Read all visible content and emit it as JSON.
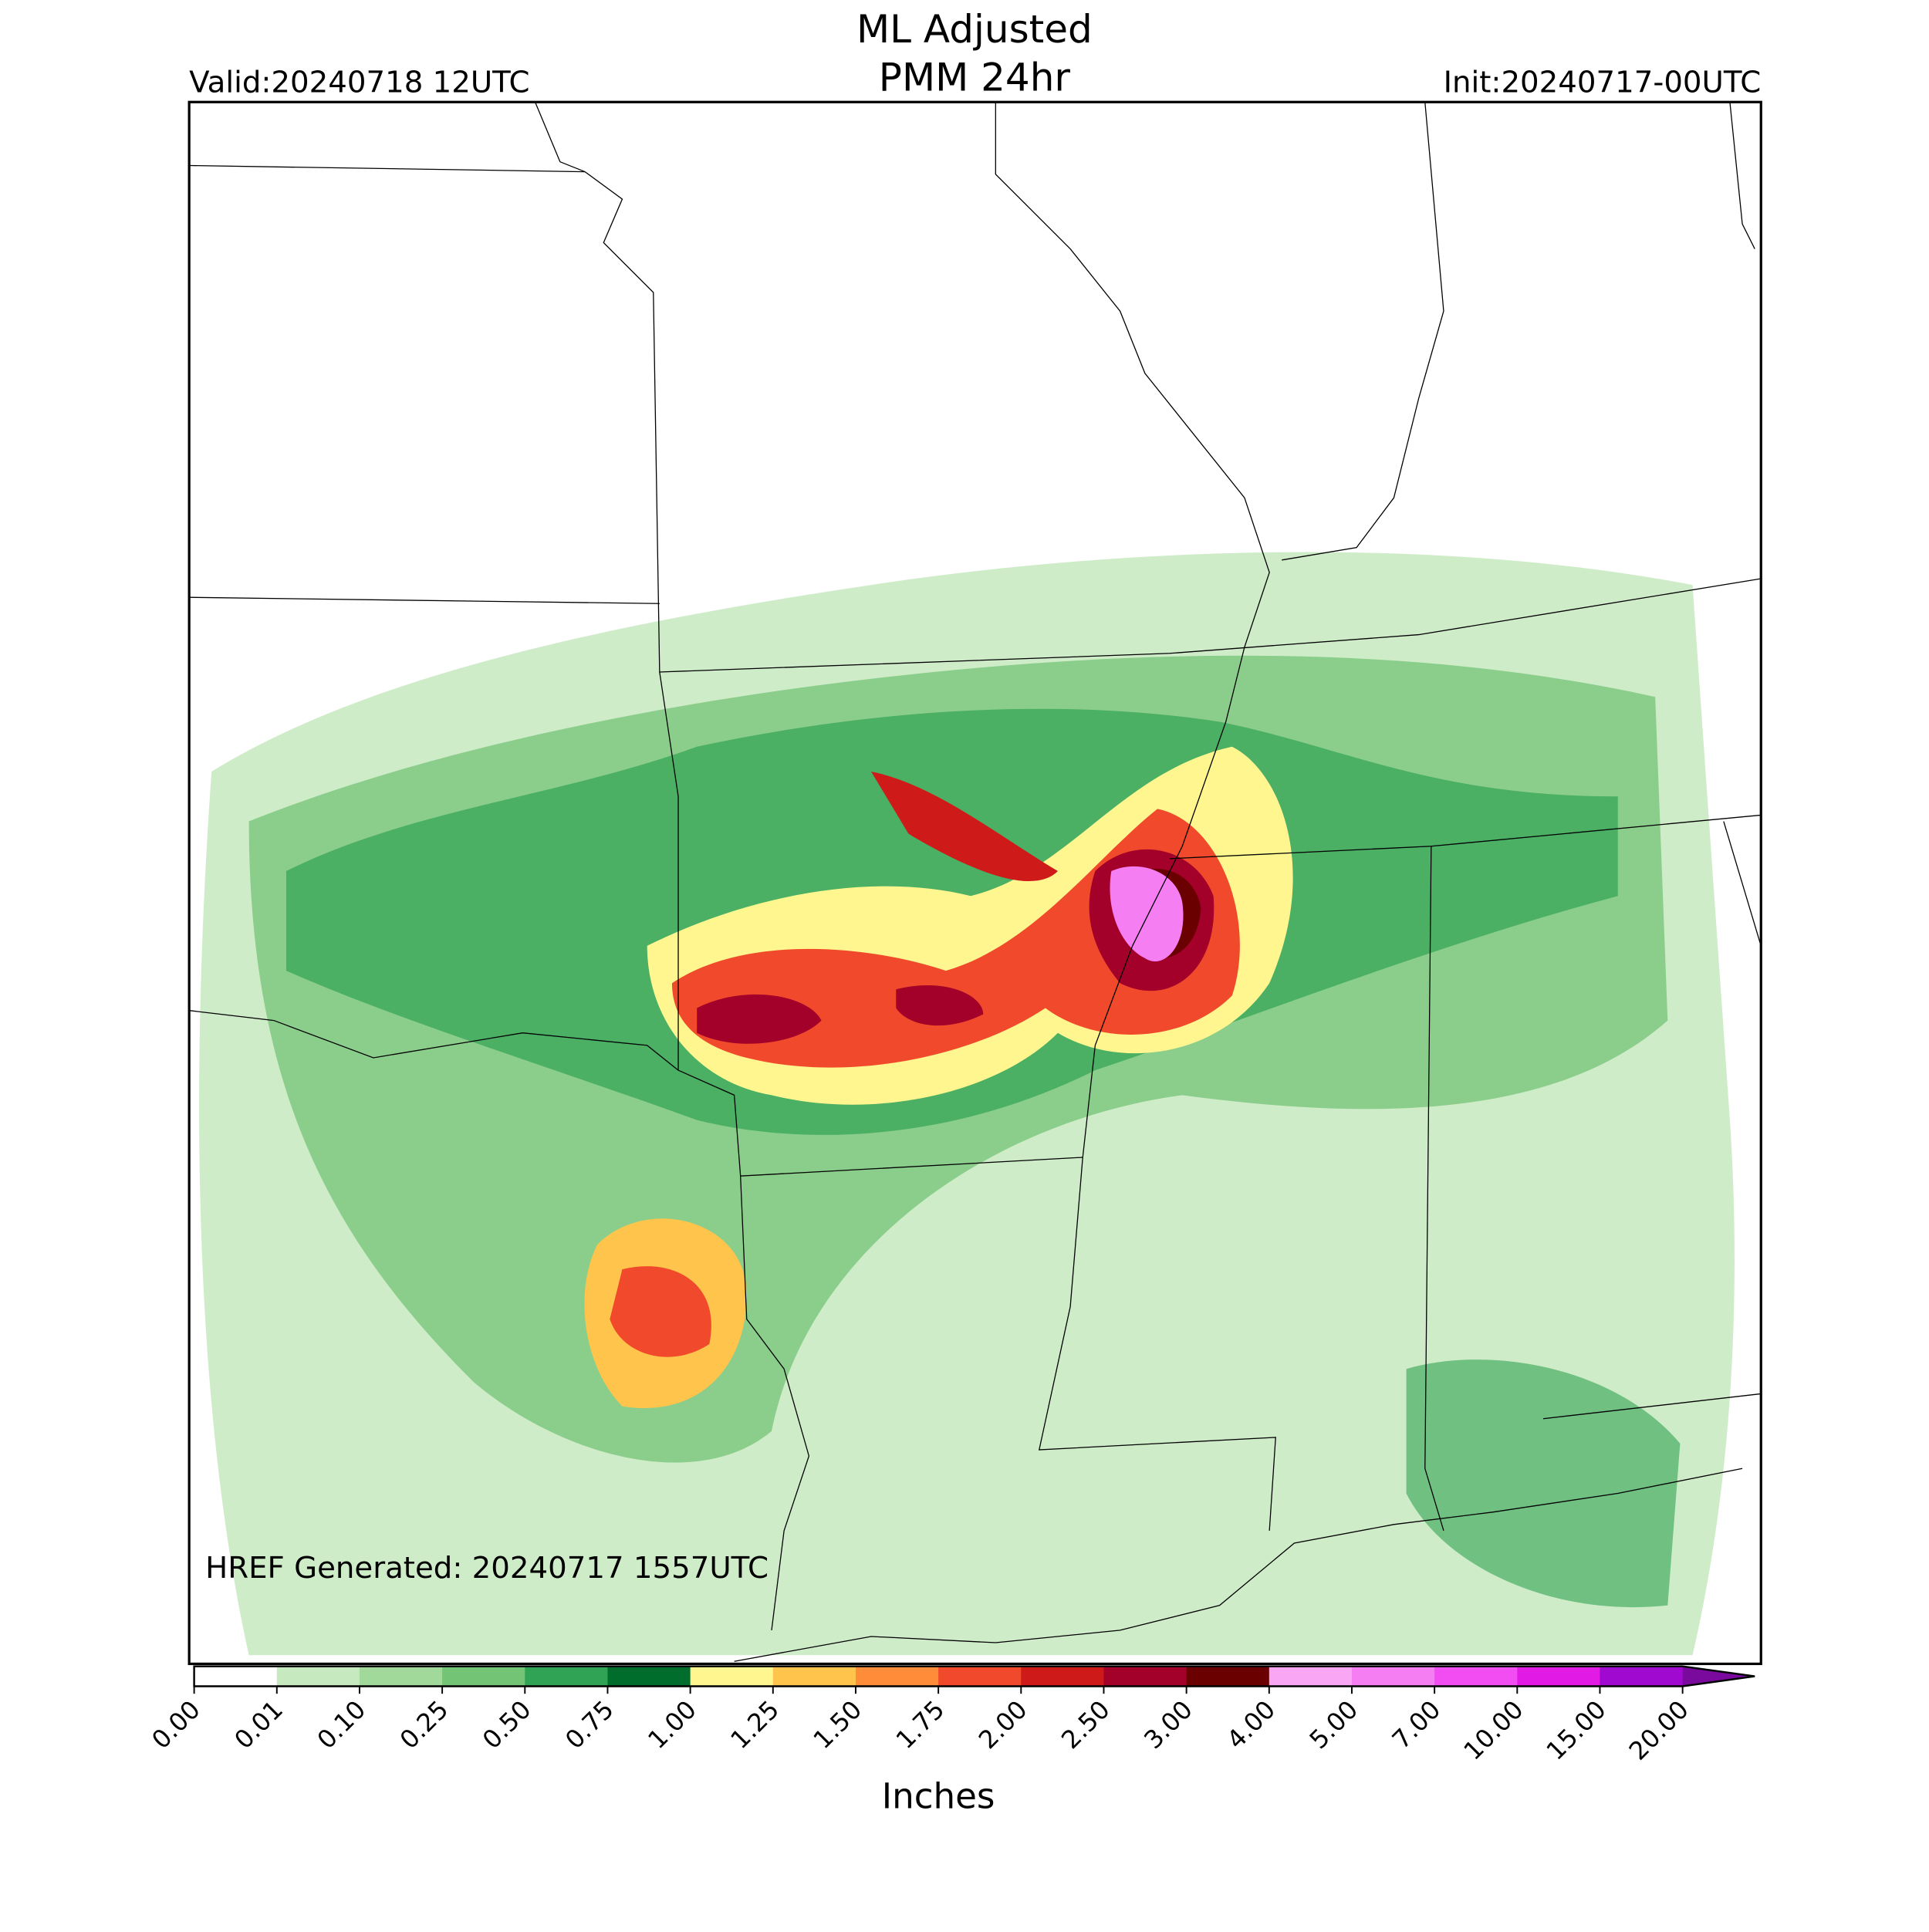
{
  "title": [
    "ML Adjusted",
    "PMM 24hr"
  ],
  "valid": "Valid:20240718 12UTC",
  "init": "Init:20240717-00UTC",
  "generated": "HREF Generated: 20240717 1557UTC",
  "colorbar": {
    "label": "Inches",
    "ticks": [
      "0.00",
      "0.01",
      "0.10",
      "0.25",
      "0.50",
      "0.75",
      "1.00",
      "1.25",
      "1.50",
      "1.75",
      "2.00",
      "2.50",
      "3.00",
      "4.00",
      "5.00",
      "7.00",
      "10.00",
      "15.00",
      "20.00"
    ],
    "colors": [
      "#ffffff",
      "#c7e9c0",
      "#a1d99b",
      "#74c476",
      "#31a354",
      "#006d2c",
      "#fff68f",
      "#ffc44c",
      "#ff8c38",
      "#f0492b",
      "#cf1a1a",
      "#a3002a",
      "#6a0000",
      "#f9a6f5",
      "#f57ef3",
      "#f24df2",
      "#e11ae6",
      "#a00ad0"
    ],
    "extend_color": "#7a0a9e"
  }
}
